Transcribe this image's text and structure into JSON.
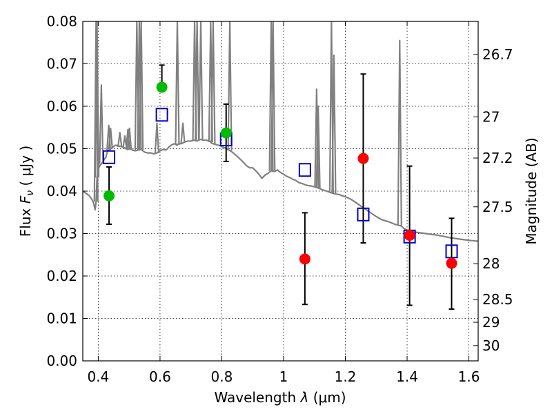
{
  "chart_data": {
    "type": "scatter",
    "xlabel_text": "Wavelength",
    "xlabel_symbol": "λ",
    "xlabel_unit": "(μm)",
    "ylabel_text": "Flux",
    "ylabel_symbol": "F",
    "ylabel_subscript": "ν",
    "ylabel_unit": "( μJy )",
    "y2label": "Magnitude (AB)",
    "xlim": [
      0.35,
      1.63
    ],
    "ylim": [
      0.0,
      0.08
    ],
    "grid": true,
    "x_ticks": [
      {
        "value": 0.4,
        "label": "0.4"
      },
      {
        "value": 0.6,
        "label": "0.6"
      },
      {
        "value": 0.8,
        "label": "0.8"
      },
      {
        "value": 1.0,
        "label": "1"
      },
      {
        "value": 1.2,
        "label": "1.2"
      },
      {
        "value": 1.4,
        "label": "1.4"
      },
      {
        "value": 1.6,
        "label": "1.6"
      }
    ],
    "y_ticks": [
      {
        "value": 0.0,
        "label": "0.00"
      },
      {
        "value": 0.01,
        "label": "0.01"
      },
      {
        "value": 0.02,
        "label": "0.02"
      },
      {
        "value": 0.03,
        "label": "0.03"
      },
      {
        "value": 0.04,
        "label": "0.04"
      },
      {
        "value": 0.05,
        "label": "0.05"
      },
      {
        "value": 0.06,
        "label": "0.06"
      },
      {
        "value": 0.07,
        "label": "0.07"
      },
      {
        "value": 0.08,
        "label": "0.08"
      }
    ],
    "y2_ticks": [
      {
        "flux": 0.0722,
        "label": "26.7"
      },
      {
        "flux": 0.0575,
        "label": "27"
      },
      {
        "flux": 0.0478,
        "label": "27.2"
      },
      {
        "flux": 0.0363,
        "label": "27.5"
      },
      {
        "flux": 0.0229,
        "label": "28"
      },
      {
        "flux": 0.0145,
        "label": "28.5"
      },
      {
        "flux": 0.0091,
        "label": "29"
      },
      {
        "flux": 0.0036,
        "label": "30"
      }
    ],
    "colors": {
      "model": "#808080",
      "model_photometry": "#0000cc",
      "detection": "#00bb00",
      "nondetection": "#ff0000",
      "errorbar": "#000000"
    },
    "model_spectrum": {
      "x": [
        0.35,
        0.36,
        0.37,
        0.38,
        0.385,
        0.39,
        0.393,
        0.396,
        0.4,
        0.405,
        0.41,
        0.415,
        0.42,
        0.425,
        0.43,
        0.44,
        0.45,
        0.455,
        0.46,
        0.465,
        0.47,
        0.48,
        0.49,
        0.495,
        0.5,
        0.51,
        0.52,
        0.53,
        0.54,
        0.55,
        0.56,
        0.57,
        0.58,
        0.59,
        0.6,
        0.61,
        0.62,
        0.63,
        0.64,
        0.65,
        0.655,
        0.66,
        0.67,
        0.68,
        0.69,
        0.7,
        0.71,
        0.72,
        0.73,
        0.74,
        0.75,
        0.76,
        0.77,
        0.78,
        0.79,
        0.8,
        0.81,
        0.82,
        0.83,
        0.84,
        0.85,
        0.86,
        0.87,
        0.88,
        0.89,
        0.9,
        0.91,
        0.92,
        0.93,
        0.94,
        0.95,
        0.96,
        0.97,
        0.98,
        0.99,
        1.0,
        1.01,
        1.02,
        1.03,
        1.04,
        1.05,
        1.06,
        1.07,
        1.08,
        1.09,
        1.1,
        1.11,
        1.12,
        1.13,
        1.14,
        1.15,
        1.16,
        1.17,
        1.18,
        1.19,
        1.2,
        1.22,
        1.24,
        1.26,
        1.28,
        1.3,
        1.32,
        1.34,
        1.36,
        1.37,
        1.38,
        1.39,
        1.4,
        1.42,
        1.44,
        1.46,
        1.48,
        1.5,
        1.52,
        1.54,
        1.56,
        1.58,
        1.6,
        1.63
      ],
      "y": [
        0.04,
        0.0395,
        0.039,
        0.038,
        0.0372,
        0.0356,
        0.0375,
        0.0432,
        0.0451,
        0.046,
        0.0464,
        0.047,
        0.0475,
        0.048,
        0.0495,
        0.05,
        0.0505,
        0.0508,
        0.0508,
        0.0505,
        0.0506,
        0.0504,
        0.05,
        0.0498,
        0.05,
        0.0497,
        0.0495,
        0.0497,
        0.0498,
        0.0492,
        0.049,
        0.049,
        0.0488,
        0.049,
        0.0495,
        0.0498,
        0.0497,
        0.0505,
        0.051,
        0.0512,
        0.0508,
        0.0512,
        0.0512,
        0.0516,
        0.0518,
        0.0518,
        0.052,
        0.0518,
        0.0522,
        0.052,
        0.052,
        0.0518,
        0.0512,
        0.051,
        0.0508,
        0.0505,
        0.0502,
        0.0498,
        0.0494,
        0.0488,
        0.0482,
        0.0475,
        0.0468,
        0.046,
        0.0455,
        0.0455,
        0.0448,
        0.044,
        0.043,
        0.0438,
        0.0442,
        0.0448,
        0.0446,
        0.045,
        0.0444,
        0.044,
        0.0435,
        0.0432,
        0.0428,
        0.0425,
        0.042,
        0.0418,
        0.0415,
        0.0413,
        0.0412,
        0.041,
        0.0408,
        0.0405,
        0.0402,
        0.04,
        0.0397,
        0.0395,
        0.0393,
        0.0392,
        0.0389,
        0.0387,
        0.038,
        0.037,
        0.036,
        0.035,
        0.034,
        0.0332,
        0.0328,
        0.0322,
        0.032,
        0.0318,
        0.0312,
        0.0308,
        0.0304,
        0.0302,
        0.03,
        0.0298,
        0.0296,
        0.0293,
        0.029,
        0.0288,
        0.0286,
        0.0284,
        0.0282
      ]
    },
    "emission_lines": [
      {
        "x": 0.393,
        "peak": 0.08
      },
      {
        "x": 0.396,
        "peak": 0.08
      },
      {
        "x": 0.41,
        "peak": 0.065
      },
      {
        "x": 0.434,
        "peak": 0.0555
      },
      {
        "x": 0.44,
        "peak": 0.0548
      },
      {
        "x": 0.47,
        "peak": 0.0538
      },
      {
        "x": 0.486,
        "peak": 0.053
      },
      {
        "x": 0.496,
        "peak": 0.0545
      },
      {
        "x": 0.501,
        "peak": 0.0548
      },
      {
        "x": 0.525,
        "peak": 0.08
      },
      {
        "x": 0.533,
        "peak": 0.08
      },
      {
        "x": 0.539,
        "peak": 0.08
      },
      {
        "x": 0.59,
        "peak": 0.056
      },
      {
        "x": 0.656,
        "peak": 0.08
      },
      {
        "x": 0.674,
        "peak": 0.056
      },
      {
        "x": 0.712,
        "peak": 0.08
      },
      {
        "x": 0.72,
        "peak": 0.08
      },
      {
        "x": 0.732,
        "peak": 0.08
      },
      {
        "x": 0.764,
        "peak": 0.08
      },
      {
        "x": 0.772,
        "peak": 0.08
      },
      {
        "x": 0.826,
        "peak": 0.08
      },
      {
        "x": 0.96,
        "peak": 0.08
      },
      {
        "x": 0.966,
        "peak": 0.08
      },
      {
        "x": 1.107,
        "peak": 0.064
      },
      {
        "x": 1.112,
        "peak": 0.06
      },
      {
        "x": 1.155,
        "peak": 0.08
      },
      {
        "x": 1.163,
        "peak": 0.072
      },
      {
        "x": 1.376,
        "peak": 0.0755
      }
    ],
    "model_photometry": [
      {
        "x": 0.435,
        "y": 0.048
      },
      {
        "x": 0.606,
        "y": 0.058
      },
      {
        "x": 0.814,
        "y": 0.0522
      },
      {
        "x": 1.069,
        "y": 0.045
      },
      {
        "x": 1.258,
        "y": 0.0345
      },
      {
        "x": 1.408,
        "y": 0.0293
      },
      {
        "x": 1.544,
        "y": 0.0258
      }
    ],
    "observations": [
      {
        "x": 0.435,
        "y": 0.0389,
        "err_low": 0.0322,
        "err_high": 0.0457,
        "detected": true
      },
      {
        "x": 0.606,
        "y": 0.0645,
        "err_low": 0.0645,
        "err_high": 0.0697,
        "detected": true
      },
      {
        "x": 0.814,
        "y": 0.0537,
        "err_low": 0.047,
        "err_high": 0.0605,
        "detected": true
      },
      {
        "x": 1.069,
        "y": 0.024,
        "err_low": 0.0133,
        "err_high": 0.0349,
        "detected": false
      },
      {
        "x": 1.258,
        "y": 0.0477,
        "err_low": 0.0278,
        "err_high": 0.0676,
        "detected": false
      },
      {
        "x": 1.408,
        "y": 0.0296,
        "err_low": 0.0131,
        "err_high": 0.0459,
        "detected": false
      },
      {
        "x": 1.544,
        "y": 0.023,
        "err_low": 0.0122,
        "err_high": 0.0336,
        "detected": false
      }
    ]
  }
}
